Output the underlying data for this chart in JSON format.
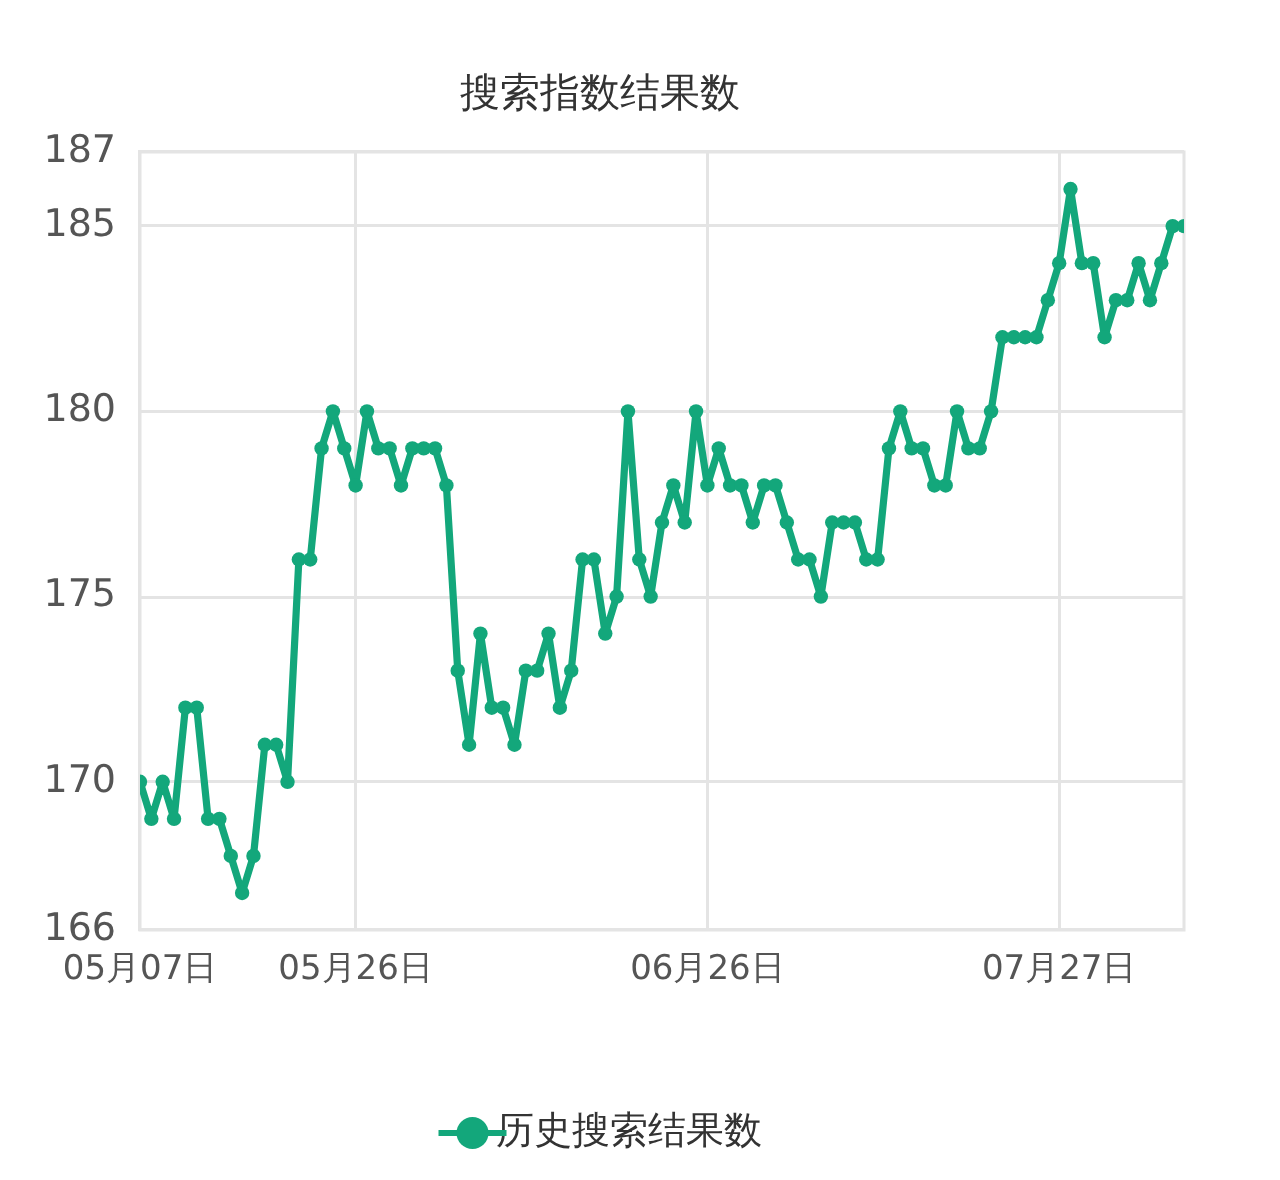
{
  "chart_data": {
    "type": "line",
    "title": "搜索指数结果数",
    "x": [
      "--05-07",
      "--05-08",
      "--05-09",
      "--05-10",
      "--05-11",
      "--05-12",
      "--05-13",
      "--05-14",
      "--05-15",
      "--05-16",
      "--05-17",
      "--05-18",
      "--05-19",
      "--05-20",
      "--05-21",
      "--05-22",
      "--05-23",
      "--05-24",
      "--05-25",
      "--05-26",
      "--05-27",
      "--05-28",
      "--05-29",
      "--05-30",
      "--05-31",
      "--06-01",
      "--06-02",
      "--06-03",
      "--06-04",
      "--06-05",
      "--06-06",
      "--06-07",
      "--06-08",
      "--06-09",
      "--06-10",
      "--06-11",
      "--06-12",
      "--06-13",
      "--06-14",
      "--06-15",
      "--06-16",
      "--06-17",
      "--06-18",
      "--06-19",
      "--06-20",
      "--06-21",
      "--06-22",
      "--06-23",
      "--06-24",
      "--06-25",
      "--06-26",
      "--06-27",
      "--06-28",
      "--06-29",
      "--06-30",
      "--07-01",
      "--07-02",
      "--07-03",
      "--07-04",
      "--07-05",
      "--07-06",
      "--07-07",
      "--07-08",
      "--07-09",
      "--07-10",
      "--07-11",
      "--07-12",
      "--07-13",
      "--07-14",
      "--07-15",
      "--07-16",
      "--07-17",
      "--07-18",
      "--07-19",
      "--07-20",
      "--07-21",
      "--07-22",
      "--07-23",
      "--07-24",
      "--07-25",
      "--07-26",
      "--07-27",
      "--07-28",
      "--07-29",
      "--07-30",
      "--07-31",
      "--08-01",
      "--08-02",
      "--08-03",
      "--08-04",
      "--08-05",
      "--08-06",
      "--08-07"
    ],
    "series": [
      {
        "name": "历史搜索结果数",
        "color": "#13a77b",
        "values": [
          170,
          169,
          170,
          169,
          172,
          172,
          169,
          169,
          168,
          167,
          168,
          171,
          171,
          170,
          176,
          176,
          179,
          180,
          179,
          178,
          180,
          179,
          179,
          178,
          179,
          179,
          179,
          178,
          173,
          171,
          174,
          172,
          172,
          171,
          173,
          173,
          174,
          172,
          173,
          176,
          176,
          174,
          175,
          180,
          176,
          175,
          177,
          178,
          177,
          180,
          178,
          179,
          178,
          178,
          177,
          178,
          178,
          177,
          176,
          176,
          175,
          177,
          177,
          177,
          176,
          176,
          179,
          180,
          179,
          179,
          178,
          178,
          180,
          179,
          179,
          180,
          182,
          182,
          182,
          182,
          183,
          184,
          186,
          184,
          184,
          182,
          183,
          183,
          184,
          183,
          184,
          185,
          185
        ]
      }
    ],
    "xlim": [
      "--05-07",
      "--08-07"
    ],
    "xticks": [
      {
        "value": "--05-07",
        "label": "05月07日"
      },
      {
        "value": "--05-26",
        "label": "05月26日"
      },
      {
        "value": "--06-26",
        "label": "06月26日"
      },
      {
        "value": "--07-27",
        "label": "07月27日"
      }
    ],
    "ylim": [
      166,
      187
    ],
    "yticks": [
      166,
      170,
      175,
      180,
      185,
      187
    ],
    "grid": true,
    "legend": "bottom",
    "marker": "circle"
  }
}
